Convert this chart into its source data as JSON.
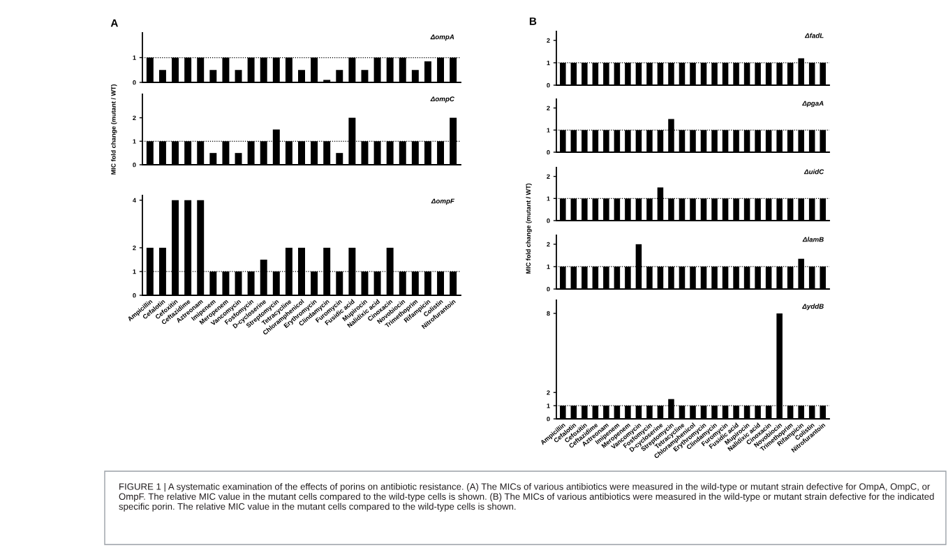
{
  "chart_data": [
    {
      "type": "bar",
      "title": "ΔompA",
      "annotations": [
        "A"
      ],
      "categories": [
        null,
        null,
        null,
        null,
        null,
        null,
        null,
        null,
        null,
        null,
        null,
        null,
        null,
        null,
        null,
        null,
        null,
        null,
        null,
        null,
        null,
        null,
        null,
        null,
        null
      ],
      "values": [
        1,
        0.5,
        1,
        1,
        1,
        0.5,
        1,
        0.5,
        1,
        1,
        1,
        1,
        0.5,
        1,
        0.1,
        0.5,
        1,
        0.5,
        1,
        1,
        1,
        0.5,
        0.85,
        1,
        1
      ],
      "color": "#000000",
      "ylim": [
        0,
        2
      ],
      "yticks": [
        0,
        1
      ],
      "tick_labels": "y",
      "grid": false,
      "ref_lines": [
        {
          "axis": "y",
          "value": 1,
          "line_style": "dotted"
        }
      ]
    },
    {
      "type": "bar",
      "title": "ΔompC",
      "ylabel": "MIC fold change (mutant / WT)",
      "categories": [
        null,
        null,
        null,
        null,
        null,
        null,
        null,
        null,
        null,
        null,
        null,
        null,
        null,
        null,
        null,
        null,
        null,
        null,
        null,
        null,
        null,
        null,
        null,
        null,
        null
      ],
      "values": [
        1,
        1,
        1,
        1,
        1,
        0.5,
        1,
        0.5,
        1,
        1,
        1.5,
        1,
        1,
        1,
        1,
        0.5,
        2,
        1,
        1,
        1,
        1,
        1,
        1,
        1,
        2
      ],
      "color": "#000000",
      "ylim": [
        0,
        3
      ],
      "yticks": [
        0,
        1,
        2
      ],
      "tick_labels": "y",
      "grid": false,
      "ref_lines": [
        {
          "axis": "y",
          "value": 1,
          "line_style": "dotted"
        }
      ]
    },
    {
      "type": "bar",
      "title": "ΔompF",
      "categories": [
        "Ampicillin",
        "Cefalotin",
        "Cefoxitin",
        "Ceftazidime",
        "Aztreonam",
        "Imipenem",
        "Meropenem",
        "Vancomycin",
        "Fosfomycin",
        "D-cycloserine",
        "Streptomycin",
        "Tetracycline",
        "Chloramphenicol",
        "Erythromycin",
        "Clindamycin",
        "Furomycin",
        "Fusidic acid",
        "Mupirocin",
        "Nalidixic acid",
        "Cinoxacin",
        "Novobiocin",
        "Trimethoprim",
        "Rifampicin",
        "Colistin",
        "Nitrofurantoin"
      ],
      "values": [
        2,
        2,
        4,
        4,
        4,
        1,
        1,
        1,
        1,
        1.5,
        1,
        2,
        2,
        1,
        2,
        1,
        2,
        1,
        1,
        2,
        1,
        1,
        1,
        1,
        1
      ],
      "color": "#000000",
      "ylim": [
        0,
        4.2
      ],
      "yticks": [
        0,
        1,
        2,
        4
      ],
      "grid": false,
      "ref_lines": [
        {
          "axis": "y",
          "value": 1,
          "line_style": "dotted"
        }
      ]
    },
    {
      "type": "bar",
      "title": "ΔfadL",
      "annotations": [
        "B"
      ],
      "categories": [
        null,
        null,
        null,
        null,
        null,
        null,
        null,
        null,
        null,
        null,
        null,
        null,
        null,
        null,
        null,
        null,
        null,
        null,
        null,
        null,
        null,
        null,
        null,
        null,
        null
      ],
      "values": [
        1,
        1,
        1,
        1,
        1,
        1,
        1,
        1,
        1,
        1,
        1,
        1,
        1,
        1,
        1,
        1,
        1,
        1,
        1,
        1,
        1,
        1,
        1.2,
        1,
        1
      ],
      "color": "#000000",
      "ylim": [
        0,
        2.4
      ],
      "yticks": [
        0,
        1,
        2
      ],
      "tick_labels": "y",
      "grid": false,
      "ref_lines": [
        {
          "axis": "y",
          "value": 1,
          "line_style": "dotted"
        }
      ]
    },
    {
      "type": "bar",
      "title": "ΔpgaA",
      "categories": [
        null,
        null,
        null,
        null,
        null,
        null,
        null,
        null,
        null,
        null,
        null,
        null,
        null,
        null,
        null,
        null,
        null,
        null,
        null,
        null,
        null,
        null,
        null,
        null,
        null
      ],
      "values": [
        1,
        1,
        1,
        1,
        1,
        1,
        1,
        1,
        1,
        1,
        1.5,
        1,
        1,
        1,
        1,
        1,
        1,
        1,
        1,
        1,
        1,
        1,
        1,
        1,
        1
      ],
      "color": "#000000",
      "ylim": [
        0,
        2.4
      ],
      "yticks": [
        0,
        1,
        2
      ],
      "tick_labels": "y",
      "grid": false,
      "ref_lines": [
        {
          "axis": "y",
          "value": 1,
          "line_style": "dotted"
        }
      ]
    },
    {
      "type": "bar",
      "title": "ΔuidC",
      "ylabel": "MIC fold change (mutant / WT)",
      "categories": [
        null,
        null,
        null,
        null,
        null,
        null,
        null,
        null,
        null,
        null,
        null,
        null,
        null,
        null,
        null,
        null,
        null,
        null,
        null,
        null,
        null,
        null,
        null,
        null,
        null
      ],
      "values": [
        1,
        1,
        1,
        1,
        1,
        1,
        1,
        1,
        1,
        1.5,
        1,
        1,
        1,
        1,
        1,
        1,
        1,
        1,
        1,
        1,
        1,
        1,
        1,
        1,
        1
      ],
      "color": "#000000",
      "ylim": [
        0,
        2.4
      ],
      "yticks": [
        0,
        1,
        2
      ],
      "tick_labels": "y",
      "grid": false,
      "ref_lines": [
        {
          "axis": "y",
          "value": 1,
          "line_style": "dotted"
        }
      ]
    },
    {
      "type": "bar",
      "title": "ΔlamB",
      "categories": [
        null,
        null,
        null,
        null,
        null,
        null,
        null,
        null,
        null,
        null,
        null,
        null,
        null,
        null,
        null,
        null,
        null,
        null,
        null,
        null,
        null,
        null,
        null,
        null,
        null
      ],
      "values": [
        1,
        1,
        1,
        1,
        1,
        1,
        1,
        2,
        1,
        1,
        1,
        1,
        1,
        1,
        1,
        1,
        1,
        1,
        1,
        1,
        1,
        1,
        1.35,
        1,
        1
      ],
      "color": "#000000",
      "ylim": [
        0,
        2.4
      ],
      "yticks": [
        0,
        1,
        2
      ],
      "tick_labels": "y",
      "grid": false,
      "ref_lines": [
        {
          "axis": "y",
          "value": 1,
          "line_style": "dotted"
        }
      ]
    },
    {
      "type": "bar",
      "title": "ΔyddB",
      "annotations": [
        "FIGURE 1 | A systematic examination of the effects of porins on antibiotic resistance. (A) The MICs of various antibiotics were measured in the wild-type or mutant strain defective for OmpA, OmpC, or OmpF. The relative MIC value in the mutant cells compared to the wild-type cells is shown. (B) The MICs of various antibiotics were measured in the wild-type or mutant strain defective for the indicated specific porin. The relative MIC value in the mutant cells compared to the wild-type cells is shown."
      ],
      "categories": [
        "Ampicillin",
        "Cefalotin",
        "Cefoxitin",
        "Ceftazidime",
        "Aztreonam",
        "Imipenem",
        "Meropenem",
        "Vancomycin",
        "Fosfomycin",
        "D-cycloserine",
        "Streptomycin",
        "Tetracycline",
        "Chloramphenicol",
        "Erythromycin",
        "Clindamycin",
        "Furomycin",
        "Fusidic acid",
        "Mupirocin",
        "Nalidixic acid",
        "Cinoxacin",
        "Novobiocin",
        "Trimethoprim",
        "Rifampicin",
        "Colistin",
        "Nitrofurantoin"
      ],
      "values": [
        1,
        1,
        1,
        1,
        1,
        1,
        1,
        1,
        1,
        1,
        1.5,
        1,
        1,
        1,
        1,
        1,
        1,
        1,
        1,
        1,
        8,
        1,
        1,
        1,
        1
      ],
      "color": "#000000",
      "ylim": [
        0,
        9
      ],
      "yticks": [
        0,
        1,
        2,
        8
      ],
      "grid": false,
      "ref_lines": [
        {
          "axis": "y",
          "value": 1,
          "line_style": "dotted"
        }
      ]
    }
  ]
}
